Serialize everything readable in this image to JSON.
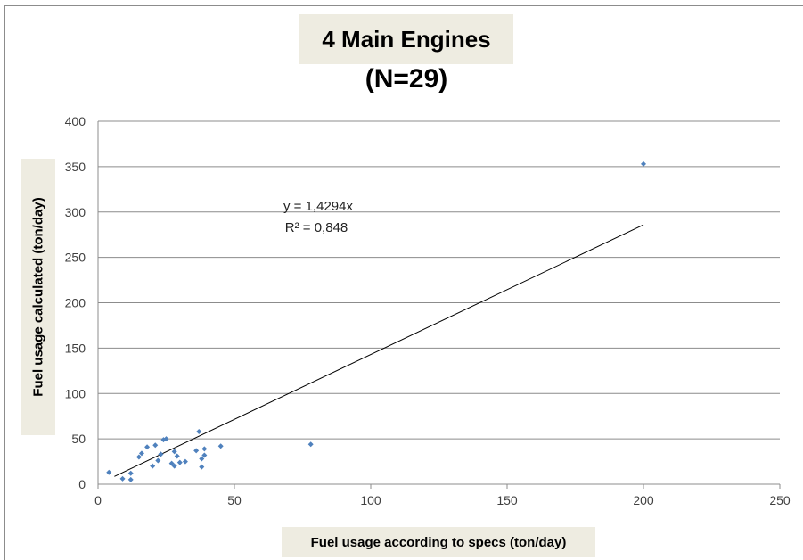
{
  "chart_data": {
    "type": "scatter",
    "title": "4 Main Engines",
    "subtitle": "(N=29)",
    "xlabel": "Fuel usage according to specs (ton/day)",
    "ylabel": "Fuel usage calculated (ton/day)",
    "xlim": [
      0,
      250
    ],
    "ylim": [
      0,
      400
    ],
    "x_ticks": [
      "0",
      "50",
      "100",
      "150",
      "200",
      "250"
    ],
    "y_ticks": [
      "0",
      "50",
      "100",
      "150",
      "200",
      "250",
      "300",
      "350",
      "400"
    ],
    "grid": "horizontal",
    "series": [
      {
        "color": "#4f81bd",
        "points": [
          [
            4,
            13
          ],
          [
            9,
            6
          ],
          [
            12,
            12
          ],
          [
            12,
            5
          ],
          [
            15,
            30
          ],
          [
            16,
            34
          ],
          [
            18,
            41
          ],
          [
            20,
            20
          ],
          [
            21,
            43
          ],
          [
            22,
            26
          ],
          [
            23,
            33
          ],
          [
            24,
            49
          ],
          [
            25,
            50
          ],
          [
            27,
            23
          ],
          [
            28,
            36
          ],
          [
            28,
            20
          ],
          [
            29,
            31
          ],
          [
            30,
            24
          ],
          [
            32,
            25
          ],
          [
            36,
            37
          ],
          [
            37,
            58
          ],
          [
            38,
            19
          ],
          [
            38,
            28
          ],
          [
            39,
            32
          ],
          [
            39,
            39
          ],
          [
            45,
            42
          ],
          [
            78,
            44
          ],
          [
            200,
            353
          ],
          [
            23,
            33
          ]
        ]
      }
    ],
    "trendline": {
      "type": "linear-through-origin",
      "slope": 1.4294,
      "x_range": [
        6,
        200
      ],
      "color": "#000000",
      "equation": "y = 1,4294x",
      "r_squared": "R² = 0,848"
    }
  }
}
